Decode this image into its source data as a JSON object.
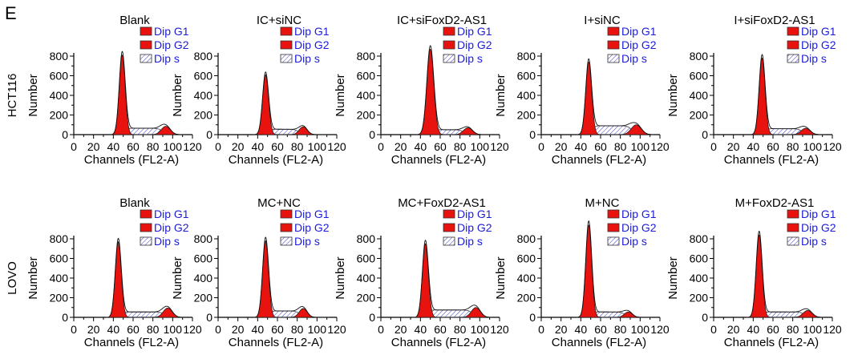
{
  "panel_label": "E",
  "colors": {
    "g1": "#e8130e",
    "g2": "#e8130e",
    "s_hatch": "#3c3cc8",
    "legend_text": "#1b1bd6",
    "axis": "#000000"
  },
  "chart_data": [
    {
      "type": "histogram",
      "row_label": "HCT116",
      "title": "Blank",
      "xlabel": "Channels (FL2-A)",
      "ylabel": "Number",
      "xlim": [
        0,
        120
      ],
      "ylim": [
        0,
        800
      ],
      "xticks": [
        0,
        20,
        40,
        60,
        80,
        100,
        120
      ],
      "yticks": [
        0,
        100,
        200,
        300,
        400,
        500,
        600,
        700,
        800
      ],
      "legend": [
        "Dip G1",
        "Dip G2",
        "Dip s"
      ],
      "g1": {
        "center": 49,
        "width": 3.0,
        "peak": 810
      },
      "g2": {
        "center": 93,
        "width": 4.5,
        "peak": 85
      },
      "s": {
        "start": 52,
        "end": 90,
        "level": 65
      }
    },
    {
      "type": "histogram",
      "row_label": "HCT116",
      "title": "IC+siNC",
      "xlabel": "Channels (FL2-A)",
      "ylabel": "Number",
      "xlim": [
        0,
        120
      ],
      "ylim": [
        0,
        800
      ],
      "xticks": [
        0,
        20,
        40,
        60,
        80,
        100,
        120
      ],
      "yticks": [
        0,
        100,
        200,
        300,
        400,
        500,
        600,
        700,
        800
      ],
      "legend": [
        "Dip G1",
        "Dip G2",
        "Dip s"
      ],
      "g1": {
        "center": 48,
        "width": 3.0,
        "peak": 610
      },
      "g2": {
        "center": 86,
        "width": 4.0,
        "peak": 80
      },
      "s": {
        "start": 51,
        "end": 82,
        "level": 55
      }
    },
    {
      "type": "histogram",
      "row_label": "HCT116",
      "title": "IC+siFoxD2-AS1",
      "xlabel": "Channels (FL2-A)",
      "ylabel": "Number",
      "xlim": [
        0,
        120
      ],
      "ylim": [
        0,
        800
      ],
      "xticks": [
        0,
        20,
        40,
        60,
        80,
        100,
        120
      ],
      "yticks": [
        0,
        100,
        200,
        300,
        400,
        500,
        600,
        700,
        800
      ],
      "legend": [
        "Dip G1",
        "Dip G2",
        "Dip s"
      ],
      "g1": {
        "center": 50,
        "width": 3.5,
        "peak": 870
      },
      "g2": {
        "center": 88,
        "width": 4.5,
        "peak": 70
      },
      "s": {
        "start": 54,
        "end": 84,
        "level": 50
      }
    },
    {
      "type": "histogram",
      "row_label": "HCT116",
      "title": "I+siNC",
      "xlabel": "Channels (FL2-A)",
      "ylabel": "Number",
      "xlim": [
        0,
        120
      ],
      "ylim": [
        0,
        800
      ],
      "xticks": [
        0,
        20,
        40,
        60,
        80,
        100,
        120
      ],
      "yticks": [
        0,
        100,
        200,
        300,
        400,
        500,
        600,
        700,
        800
      ],
      "legend": [
        "Dip G1",
        "Dip G2",
        "Dip s"
      ],
      "g1": {
        "center": 48,
        "width": 3.0,
        "peak": 740
      },
      "g2": {
        "center": 96,
        "width": 5.0,
        "peak": 100
      },
      "s": {
        "start": 52,
        "end": 92,
        "level": 90
      }
    },
    {
      "type": "histogram",
      "row_label": "HCT116",
      "title": "I+siFoxD2-AS1",
      "xlabel": "Channels (FL2-A)",
      "ylabel": "Number",
      "xlim": [
        0,
        120
      ],
      "ylim": [
        0,
        800
      ],
      "xticks": [
        0,
        20,
        40,
        60,
        80,
        100,
        120
      ],
      "yticks": [
        0,
        100,
        200,
        300,
        400,
        500,
        600,
        700,
        800
      ],
      "legend": [
        "Dip G1",
        "Dip G2",
        "Dip s"
      ],
      "g1": {
        "center": 49,
        "width": 3.0,
        "peak": 780
      },
      "g2": {
        "center": 93,
        "width": 4.5,
        "peak": 65
      },
      "s": {
        "start": 52,
        "end": 90,
        "level": 60
      }
    },
    {
      "type": "histogram",
      "row_label": "LOVO",
      "title": "Blank",
      "xlabel": "Channels (FL2-A)",
      "ylabel": "Number",
      "xlim": [
        0,
        120
      ],
      "ylim": [
        0,
        800
      ],
      "xticks": [
        0,
        20,
        40,
        60,
        80,
        100,
        120
      ],
      "yticks": [
        0,
        100,
        200,
        300,
        400,
        500,
        600,
        700,
        800
      ],
      "legend": [
        "Dip G1",
        "Dip G2",
        "Dip s"
      ],
      "g1": {
        "center": 45,
        "width": 3.0,
        "peak": 770
      },
      "g2": {
        "center": 95,
        "width": 4.5,
        "peak": 95
      },
      "s": {
        "start": 48,
        "end": 92,
        "level": 55
      }
    },
    {
      "type": "histogram",
      "row_label": "LOVO",
      "title": "MC+NC",
      "xlabel": "Channels (FL2-A)",
      "ylabel": "Number",
      "xlim": [
        0,
        120
      ],
      "ylim": [
        0,
        800
      ],
      "xticks": [
        0,
        20,
        40,
        60,
        80,
        100,
        120
      ],
      "yticks": [
        0,
        100,
        200,
        300,
        400,
        500,
        600,
        700,
        800
      ],
      "legend": [
        "Dip G1",
        "Dip G2",
        "Dip s"
      ],
      "g1": {
        "center": 48,
        "width": 3.0,
        "peak": 780
      },
      "g2": {
        "center": 86,
        "width": 4.0,
        "peak": 90
      },
      "s": {
        "start": 51,
        "end": 83,
        "level": 65
      }
    },
    {
      "type": "histogram",
      "row_label": "LOVO",
      "title": "MC+FoxD2-AS1",
      "xlabel": "Channels (FL2-A)",
      "ylabel": "Number",
      "xlim": [
        0,
        120
      ],
      "ylim": [
        0,
        800
      ],
      "xticks": [
        0,
        20,
        40,
        60,
        80,
        100,
        120
      ],
      "yticks": [
        0,
        100,
        200,
        300,
        400,
        500,
        600,
        700,
        800
      ],
      "legend": [
        "Dip G1",
        "Dip G2",
        "Dip s"
      ],
      "g1": {
        "center": 45,
        "width": 3.0,
        "peak": 750
      },
      "g2": {
        "center": 96,
        "width": 4.5,
        "peak": 100
      },
      "s": {
        "start": 48,
        "end": 93,
        "level": 75
      }
    },
    {
      "type": "histogram",
      "row_label": "LOVO",
      "title": "M+NC",
      "xlabel": "Channels (FL2-A)",
      "ylabel": "Number",
      "xlim": [
        0,
        120
      ],
      "ylim": [
        0,
        800
      ],
      "xticks": [
        0,
        20,
        40,
        60,
        80,
        100,
        120
      ],
      "yticks": [
        0,
        100,
        200,
        300,
        400,
        500,
        600,
        700,
        800
      ],
      "legend": [
        "Dip G1",
        "Dip G2",
        "Dip s"
      ],
      "g1": {
        "center": 48,
        "width": 3.0,
        "peak": 940
      },
      "g2": {
        "center": 88,
        "width": 4.0,
        "peak": 55
      },
      "s": {
        "start": 51,
        "end": 85,
        "level": 55
      }
    },
    {
      "type": "histogram",
      "row_label": "LOVO",
      "title": "M+FoxD2-AS1",
      "xlabel": "Channels (FL2-A)",
      "ylabel": "Number",
      "xlim": [
        0,
        120
      ],
      "ylim": [
        0,
        800
      ],
      "xticks": [
        0,
        20,
        40,
        60,
        80,
        100,
        120
      ],
      "yticks": [
        0,
        100,
        200,
        300,
        400,
        500,
        600,
        700,
        800
      ],
      "legend": [
        "Dip G1",
        "Dip G2",
        "Dip s"
      ],
      "g1": {
        "center": 46,
        "width": 3.0,
        "peak": 840
      },
      "g2": {
        "center": 95,
        "width": 4.5,
        "peak": 70
      },
      "s": {
        "start": 49,
        "end": 92,
        "level": 55
      }
    }
  ]
}
